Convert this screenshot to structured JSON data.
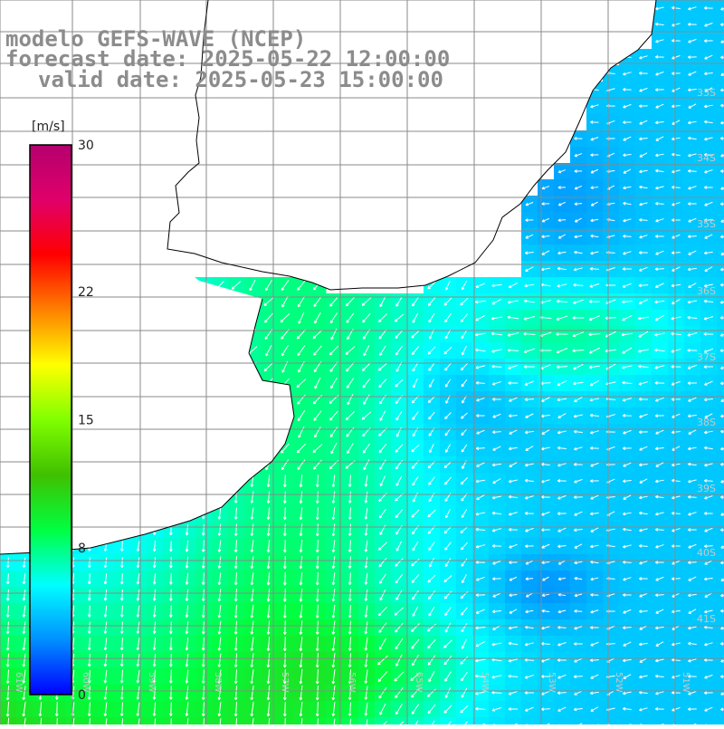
{
  "title": {
    "model": "modelo GEFS-WAVE (NCEP)",
    "forecast_date": "forecast date: 2025-05-22 12:00:00",
    "valid_date": "valid date: 2025-05-23 15:00:00"
  },
  "colorbar": {
    "unit": "[m/s]",
    "ticks": [
      "30",
      "22",
      "15",
      "8",
      "0"
    ],
    "tick_values": [
      30,
      22,
      15,
      8,
      0
    ],
    "min": 0,
    "max": 30,
    "colors": [
      "#0000ff",
      "#0090ff",
      "#00ffff",
      "#00ff40",
      "#40c000",
      "#80ff00",
      "#ffff00",
      "#ff8000",
      "#ff0000",
      "#e0006a",
      "#b4006e"
    ]
  },
  "latitude_labels": [
    "33S",
    "34S",
    "35S",
    "36S",
    "37S",
    "38S",
    "39S",
    "40S",
    "41S"
  ],
  "longitude_labels": [
    "61W",
    "60W",
    "59W",
    "58W",
    "57W",
    "56W",
    "55W",
    "54W",
    "53W",
    "52W",
    "51W"
  ],
  "colors": {
    "title": "#8c8c8c",
    "grid": "#8a8a8a",
    "coast": "#000000",
    "land": "#ffffff",
    "arrows": "#ffffff"
  }
}
